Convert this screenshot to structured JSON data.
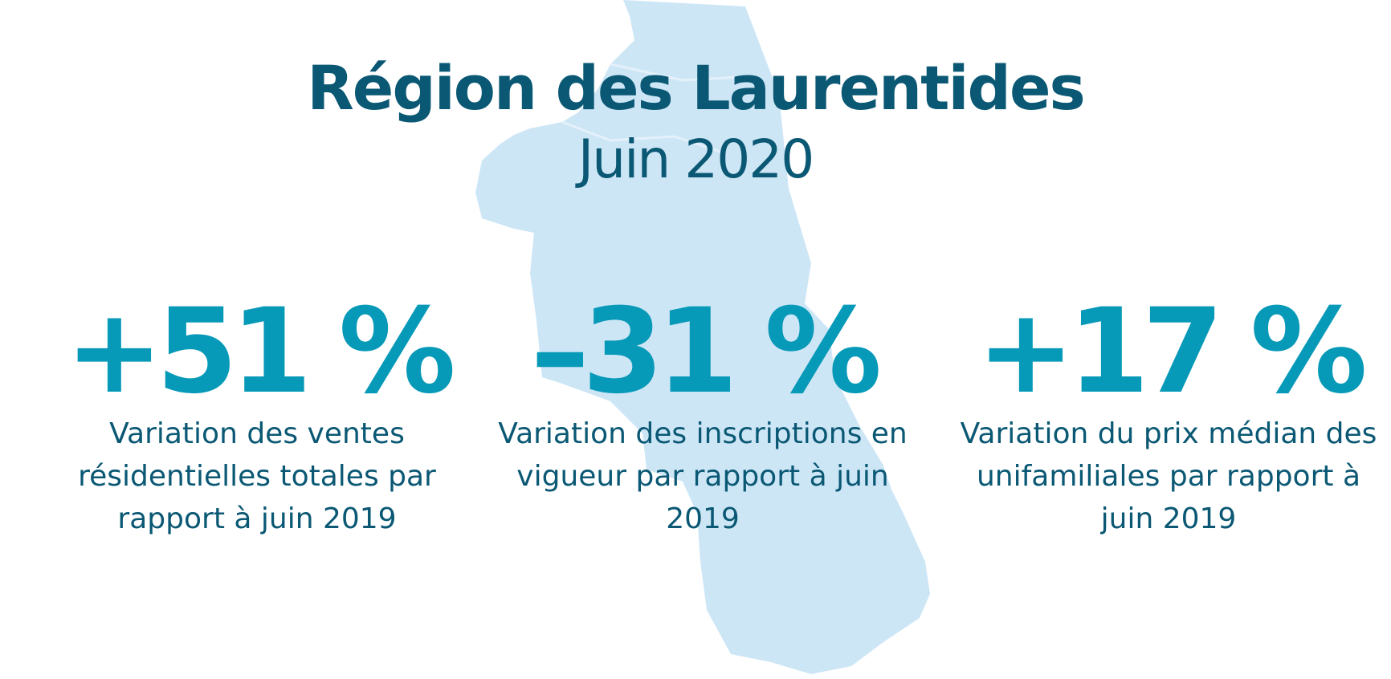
{
  "colors": {
    "title": "#0a5874",
    "accent": "#0699b8",
    "map": "#cde6f6",
    "map_line": "#e4f1fa"
  },
  "header": {
    "title": "Région des Laurentides",
    "subtitle": "Juin 2020"
  },
  "stats": [
    {
      "value": "+51 %",
      "description": "Variation des ventes résidentielles totales par rapport à juin 2019"
    },
    {
      "value": "–31 %",
      "description": "Variation des inscriptions en vigueur par rapport à juin 2019"
    },
    {
      "value": "+17 %",
      "description": "Variation du prix médian des unifamiliales par rapport à juin 2019"
    }
  ]
}
